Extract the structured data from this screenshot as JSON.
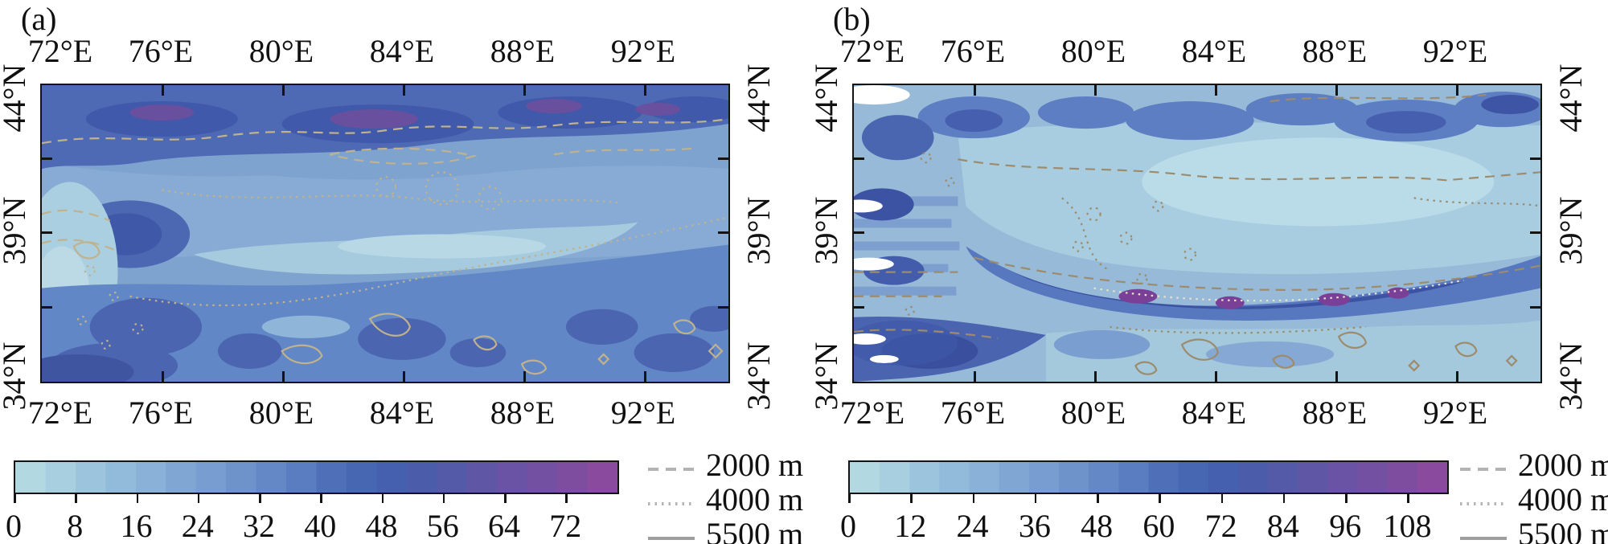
{
  "figure": {
    "description": "Two-panel filled-contour map figure over 72-92E, 34-44N with colorbars and elevation contour legend"
  },
  "panels": [
    {
      "id": "panel-a",
      "label": "(a)",
      "lon_ticks": [
        "72°E",
        "76°E",
        "80°E",
        "84°E",
        "88°E",
        "92°E"
      ],
      "lat_ticks": [
        "44°N",
        "39°N",
        "34°N"
      ],
      "colorbar": {
        "tick_values": [
          0,
          8,
          16,
          24,
          32,
          40,
          48,
          56,
          64,
          72
        ],
        "bar_range": [
          0,
          79
        ]
      }
    },
    {
      "id": "panel-b",
      "label": "(b)",
      "lon_ticks": [
        "72°E",
        "76°E",
        "80°E",
        "84°E",
        "88°E",
        "92°E"
      ],
      "lat_ticks": [
        "44°N",
        "39°N",
        "34°N"
      ],
      "colorbar": {
        "tick_values": [
          0,
          12,
          24,
          36,
          48,
          60,
          72,
          84,
          96,
          108
        ],
        "bar_range": [
          0,
          116
        ]
      }
    }
  ],
  "legend": {
    "items": [
      {
        "style": "dashed",
        "label": "2000 m",
        "color": "#b3b3b3"
      },
      {
        "style": "dotted",
        "label": "4000 m",
        "color": "#b3b3b3"
      },
      {
        "style": "solid",
        "label": "5500 m",
        "color": "#9e9e9e"
      }
    ]
  },
  "chart_data": [
    {
      "type": "heatmap",
      "panel": "(a)",
      "x_tick_labels": [
        "72°E",
        "76°E",
        "80°E",
        "84°E",
        "88°E",
        "92°E"
      ],
      "x_tick_values": [
        72,
        76,
        80,
        84,
        88,
        92
      ],
      "y_tick_labels": [
        "44°N",
        "39°N",
        "34°N"
      ],
      "y_tick_values": [
        44,
        39,
        34
      ],
      "colorbar_tick_values": [
        0,
        8,
        16,
        24,
        32,
        40,
        48,
        56,
        64,
        72
      ],
      "colorbar_range": [
        0,
        79
      ],
      "colorbar_n_segments": 20,
      "palette": [
        "#b2d8e2",
        "#a8cfe0",
        "#9cc4dd",
        "#92badb",
        "#8ab1d8",
        "#80a7d4",
        "#789dd1",
        "#6e93cb",
        "#6487c6",
        "#5a7cc0",
        "#4f70b8",
        "#4767b3",
        "#4560ae",
        "#4b5caa",
        "#555aa8",
        "#6056a6",
        "#6a53a4",
        "#7450a2",
        "#7f4da0",
        "#8a4b9e"
      ],
      "contour_levels_m": [
        2000,
        4000,
        5500
      ],
      "pattern": "High values (dark blue with small purple maxima) along the northern mountain band inside dashed 2000 m contours; lighter basin interior band; moderate-dark values across the south with tan solid 5500 m contour loops and dotted 4000 m lines."
    },
    {
      "type": "heatmap",
      "panel": "(b)",
      "x_tick_labels": [
        "72°E",
        "76°E",
        "80°E",
        "84°E",
        "88°E",
        "92°E"
      ],
      "x_tick_values": [
        72,
        76,
        80,
        84,
        88,
        92
      ],
      "y_tick_labels": [
        "44°N",
        "39°N",
        "34°N"
      ],
      "y_tick_values": [
        44,
        39,
        34
      ],
      "colorbar_tick_values": [
        0,
        12,
        24,
        36,
        48,
        60,
        72,
        84,
        96,
        108
      ],
      "colorbar_range": [
        0,
        116
      ],
      "colorbar_n_segments": 20,
      "palette": [
        "#b2d8e2",
        "#a8cfe0",
        "#9cc4dd",
        "#92badb",
        "#8ab1d8",
        "#80a7d4",
        "#789dd1",
        "#6e93cb",
        "#6487c6",
        "#5a7cc0",
        "#4f70b8",
        "#4767b3",
        "#4560ae",
        "#4b5caa",
        "#555aa8",
        "#6056a6",
        "#6a53a4",
        "#7450a2",
        "#7f4da0",
        "#8a4b9e"
      ],
      "contour_levels_m": [
        2000,
        4000,
        5500
      ],
      "pattern": "Light low-value basin interior with white near-zero patches on the western edge; dark blue/purple high-value arc along the southwestern mountain front; scattered dark cells along the northern range; tan solid contour loops in the south."
    }
  ]
}
